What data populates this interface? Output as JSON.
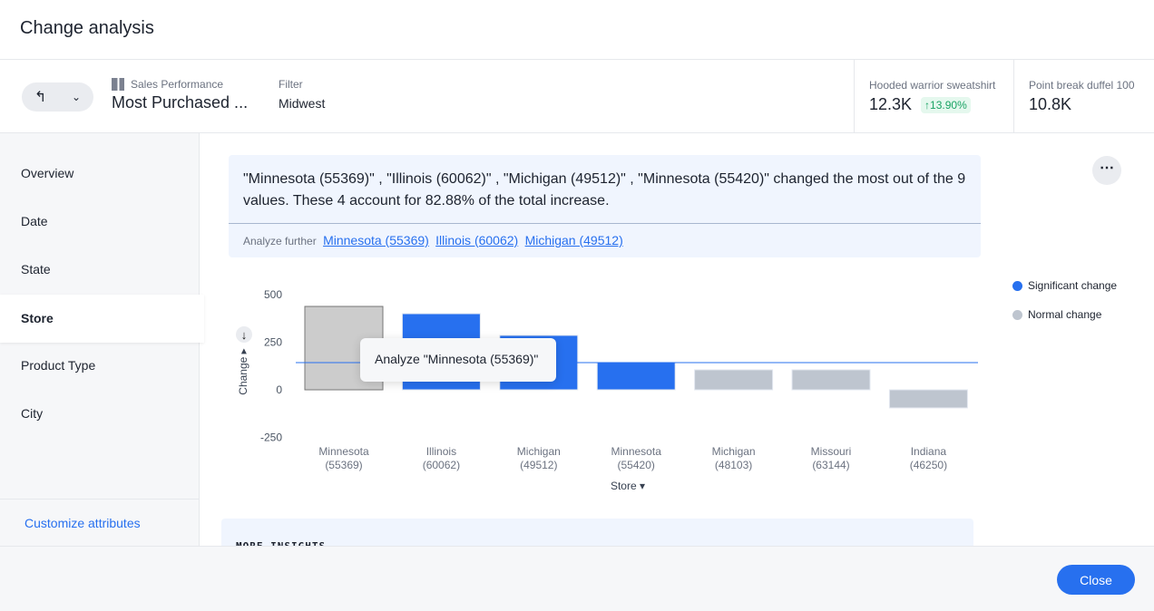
{
  "header": {
    "title": "Change analysis"
  },
  "toolbar": {
    "back_icon": "return-arrow-icon",
    "dropdown_icon": "chevron-down-icon",
    "source_label": "Sales Performance",
    "answer_title": "Most Purchased ...",
    "filter_label": "Filter",
    "filter_value": "Midwest"
  },
  "kpis": [
    {
      "label": "Hooded warrior sweatshirt",
      "value": "12.3K",
      "change": "↑13.90%"
    },
    {
      "label": "Point break duffel 100",
      "value": "10.8K"
    }
  ],
  "sidebar": {
    "items": [
      "Overview",
      "Date",
      "State",
      "Store",
      "Product Type",
      "City"
    ],
    "active": "Store",
    "customize": "Customize attributes"
  },
  "summary": {
    "text": "\"Minnesota (55369)\" , \"Illinois (60062)\" , \"Michigan (49512)\" , \"Minnesota (55420)\" changed the most out of the 9 values. These 4 account for 82.88% of the total increase.",
    "analyze_label": "Analyze further",
    "links": [
      "Minnesota (55369)",
      "Illinois (60062)",
      "Michigan (49512)"
    ]
  },
  "legend": {
    "significant": "Significant change",
    "normal": "Normal change"
  },
  "colors": {
    "significant": "#2770ef",
    "normal": "#bec5cf",
    "selected": "#cccccc",
    "accent": "#2770ef"
  },
  "tooltip": "Analyze \"Minnesota (55369)\"",
  "chart_data": {
    "type": "bar",
    "xlabel": "Store",
    "ylabel": "Change",
    "ylim": [
      -250,
      500
    ],
    "yticks": [
      500,
      250,
      0,
      -250
    ],
    "categories": [
      [
        "Minnesota",
        "(55369)"
      ],
      [
        "Illinois",
        "(60062)"
      ],
      [
        "Michigan",
        "(49512)"
      ],
      [
        "Minnesota",
        "(55420)"
      ],
      [
        "Michigan",
        "(48103)"
      ],
      [
        "Missouri",
        "(63144)"
      ],
      [
        "Indiana",
        "(46250)"
      ]
    ],
    "values": [
      438,
      400,
      286,
      143,
      105,
      105,
      -95
    ],
    "status": [
      "selected",
      "significant",
      "significant",
      "significant",
      "normal",
      "normal",
      "normal"
    ],
    "threshold": 143
  },
  "insights": {
    "title": "MORE INSIGHTS"
  },
  "footer": {
    "close": "Close"
  }
}
